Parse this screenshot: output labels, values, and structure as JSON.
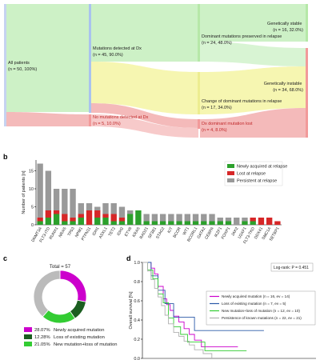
{
  "colors": {
    "newly_acquired": "#2ca02c",
    "lost_at_relapse": "#d62728",
    "persistent": "#999999",
    "donut_newly": "#cc00cc",
    "donut_loss": "#1b5e20",
    "donut_new_loss": "#33cc33",
    "donut_persist": "#bbbbbb",
    "km_newly": "#cc00cc",
    "km_loss": "#2b5aa8",
    "km_new_loss": "#33cc33",
    "km_persist": "#b0b0b0",
    "flow_green": "#c8f0c0",
    "flow_yellow": "#f5f5a8",
    "flow_red": "#f3b3b3",
    "flow_blue": "#c6d3f1"
  },
  "panel_a": {
    "nodes": {
      "all_patients": "All patients\n(n = 50, 100%)",
      "mut_detected": "Mutations detected at Dx\n(n = 45, 90.0%)",
      "no_mut": "No mutations detected at Dx\n(n = 5, 10.0%)",
      "dominant_preserved": "Dominant mutations preserved in relapse\n(n = 24, 48.0%)",
      "change_dominant": "Change of dominant mutations in relapse\n(n = 17, 34.0%)",
      "dx_lost": "Dx dominant mutation lost\n(n = 4, 8.0%)",
      "stable": "Genetically stable\n(n = 16, 32.0%)",
      "instable": "Genetically instable\n(n = 34, 68.0%)"
    }
  },
  "panel_b": {
    "label": "b",
    "chart_data": {
      "type": "bar",
      "ylabel": "Number of patients [n]",
      "ylim": [
        0,
        18
      ],
      "yticks": [
        0,
        5,
        10,
        15
      ],
      "categories": [
        "DNMT3A",
        "FLT3-ITD",
        "RUNX1",
        "NRAS",
        "TP53",
        "NPM1",
        "PTPN11",
        "IDH1",
        "ASXL1",
        "TET2",
        "IDH2",
        "ETV6",
        "KRAS",
        "RAD21",
        "SF3B1",
        "STAG2",
        "KIT",
        "BCOR",
        "WT1",
        "BCORL1",
        "GATA2",
        "CEBPA",
        "IKZF1",
        "FOXP1",
        "JAK2",
        "U2AF1",
        "FLT3-TKD",
        "DDX41",
        "SMC1A",
        "SETBP1"
      ],
      "series": [
        {
          "name": "Newly acquired at relapse",
          "values": [
            1,
            2,
            3,
            1,
            1,
            2,
            0,
            2,
            2,
            1,
            1,
            3,
            4,
            1,
            1,
            1,
            1,
            1,
            1,
            1,
            1,
            1,
            1,
            1,
            0,
            1,
            1,
            0,
            0,
            0
          ]
        },
        {
          "name": "Lost at relapse",
          "values": [
            1,
            2,
            1,
            2,
            1,
            1,
            4,
            2,
            1,
            2,
            1,
            0,
            0,
            0,
            0,
            0,
            0,
            0,
            0,
            0,
            0,
            0,
            0,
            0,
            0,
            0,
            1,
            2,
            2,
            1
          ]
        },
        {
          "name": "Persistent at relapse",
          "values": [
            15,
            11,
            6,
            7,
            8,
            3,
            2,
            1,
            3,
            3,
            3,
            1,
            0,
            2,
            2,
            2,
            2,
            2,
            2,
            2,
            2,
            2,
            1,
            1,
            2,
            1,
            0,
            0,
            0,
            0
          ]
        }
      ],
      "legend_position": "top-right"
    }
  },
  "panel_c": {
    "label": "c",
    "chart_data": {
      "type": "pie",
      "title": "Total = 57",
      "slices": [
        {
          "name": "Newly acquired mutation",
          "pct_label": "28.07%",
          "value": 16
        },
        {
          "name": "Loss of existing mutation",
          "pct_label": "12.28%",
          "value": 7
        },
        {
          "name": "New mutation+loss of mutation",
          "pct_label": "21.05%",
          "value": 12
        },
        {
          "name": "Persistence of known mutations",
          "pct_label": "",
          "value": 22
        }
      ]
    }
  },
  "panel_d": {
    "label": "d",
    "chart_data": {
      "type": "line",
      "ylabel": "Overall survival [%]",
      "ylim": [
        0,
        1
      ],
      "yticks": [
        "0.0",
        "0.2",
        "0.4",
        "0.6",
        "0.8",
        "1.0"
      ],
      "xlim": [
        0,
        100
      ],
      "annotation": "Log-rank: P = 0.451",
      "series": [
        {
          "name": "Newly acquired mutation (n = 16, ev = 14)",
          "x": [
            0,
            5,
            7,
            9,
            12,
            14,
            16,
            18,
            21,
            24,
            27,
            30,
            34,
            40,
            47,
            55
          ],
          "y": [
            1.0,
            0.94,
            0.88,
            0.75,
            0.62,
            0.56,
            0.5,
            0.44,
            0.38,
            0.31,
            0.25,
            0.19,
            0.12,
            0.12,
            0.12,
            0.12
          ]
        },
        {
          "name": "Loss of existing mutation (n = 7, ev = 5)",
          "x": [
            0,
            5,
            9,
            13,
            18,
            30,
            45,
            70
          ],
          "y": [
            1.0,
            0.86,
            0.71,
            0.57,
            0.43,
            0.29,
            0.29,
            0.29
          ]
        },
        {
          "name": "New mutation+loss of mutation (n = 12, ev = 10)",
          "x": [
            0,
            3,
            6,
            9,
            12,
            15,
            18,
            22,
            26,
            32,
            36,
            45,
            60
          ],
          "y": [
            1.0,
            0.92,
            0.83,
            0.67,
            0.58,
            0.42,
            0.33,
            0.25,
            0.17,
            0.17,
            0.08,
            0.08,
            0.08
          ]
        },
        {
          "name": "Persistence of known mutations (n = 22, ev = 21)",
          "x": [
            0,
            3,
            5,
            7,
            9,
            11,
            13,
            15,
            18,
            21,
            24,
            27,
            30,
            35,
            40
          ],
          "y": [
            1.0,
            0.91,
            0.82,
            0.73,
            0.64,
            0.55,
            0.45,
            0.36,
            0.27,
            0.23,
            0.18,
            0.14,
            0.09,
            0.05,
            0.0
          ]
        }
      ]
    }
  }
}
